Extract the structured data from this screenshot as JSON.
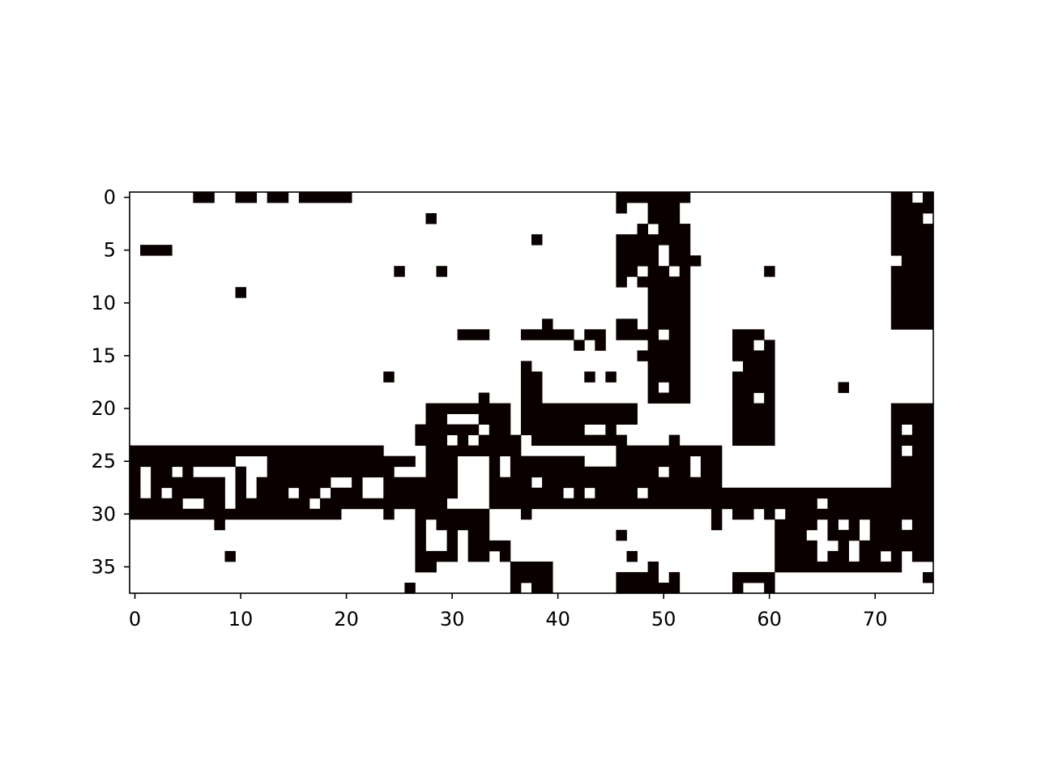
{
  "chart_data": {
    "type": "heatmap",
    "title": "",
    "xlabel": "",
    "ylabel": "",
    "n_cols": 76,
    "n_rows": 38,
    "xlim": [
      -0.5,
      75.5
    ],
    "ylim": [
      37.5,
      -0.5
    ],
    "x_ticks": [
      0,
      10,
      20,
      30,
      40,
      50,
      60,
      70
    ],
    "y_ticks": [
      0,
      5,
      10,
      15,
      20,
      25,
      30,
      35
    ],
    "grid": false,
    "colormap": {
      "0": "#ffffff",
      "1": "#0a0000"
    },
    "row_runs": [
      [
        [
          6,
          7
        ],
        [
          10,
          11
        ],
        [
          13,
          14
        ],
        [
          16,
          20
        ],
        [
          46,
          52
        ],
        [
          72,
          73
        ],
        [
          75,
          75
        ]
      ],
      [
        [
          46,
          46
        ],
        [
          49,
          51
        ],
        [
          72,
          75
        ]
      ],
      [
        [
          28,
          28
        ],
        [
          49,
          51
        ],
        [
          72,
          74
        ]
      ],
      [
        [
          48,
          48
        ],
        [
          50,
          52
        ],
        [
          72,
          75
        ]
      ],
      [
        [
          38,
          38
        ],
        [
          46,
          52
        ],
        [
          72,
          75
        ]
      ],
      [
        [
          1,
          3
        ],
        [
          46,
          49
        ],
        [
          51,
          52
        ],
        [
          72,
          75
        ]
      ],
      [
        [
          46,
          49
        ],
        [
          51,
          53
        ],
        [
          73,
          75
        ]
      ],
      [
        [
          25,
          25
        ],
        [
          29,
          29
        ],
        [
          46,
          47
        ],
        [
          49,
          50
        ],
        [
          52,
          52
        ],
        [
          60,
          60
        ],
        [
          72,
          75
        ]
      ],
      [
        [
          46,
          46
        ],
        [
          48,
          52
        ],
        [
          72,
          75
        ]
      ],
      [
        [
          10,
          10
        ],
        [
          49,
          52
        ],
        [
          72,
          75
        ]
      ],
      [
        [
          49,
          52
        ],
        [
          72,
          75
        ]
      ],
      [
        [
          49,
          52
        ],
        [
          72,
          75
        ]
      ],
      [
        [
          39,
          39
        ],
        [
          46,
          47
        ],
        [
          49,
          52
        ],
        [
          72,
          75
        ]
      ],
      [
        [
          31,
          33
        ],
        [
          37,
          41
        ],
        [
          43,
          44
        ],
        [
          46,
          49
        ],
        [
          51,
          52
        ],
        [
          57,
          59
        ]
      ],
      [
        [
          42,
          42
        ],
        [
          44,
          44
        ],
        [
          49,
          52
        ],
        [
          57,
          58
        ],
        [
          60,
          60
        ]
      ],
      [
        [
          48,
          52
        ],
        [
          57,
          60
        ]
      ],
      [
        [
          37,
          37
        ],
        [
          49,
          52
        ],
        [
          58,
          60
        ]
      ],
      [
        [
          24,
          24
        ],
        [
          37,
          38
        ],
        [
          43,
          43
        ],
        [
          45,
          45
        ],
        [
          49,
          52
        ],
        [
          57,
          60
        ]
      ],
      [
        [
          37,
          38
        ],
        [
          49,
          49
        ],
        [
          51,
          52
        ],
        [
          57,
          60
        ],
        [
          67,
          67
        ]
      ],
      [
        [
          33,
          33
        ],
        [
          37,
          38
        ],
        [
          49,
          52
        ],
        [
          57,
          58
        ],
        [
          60,
          60
        ]
      ],
      [
        [
          28,
          35
        ],
        [
          37,
          47
        ],
        [
          57,
          60
        ],
        [
          72,
          75
        ]
      ],
      [
        [
          28,
          29
        ],
        [
          33,
          35
        ],
        [
          37,
          47
        ],
        [
          57,
          60
        ],
        [
          72,
          75
        ]
      ],
      [
        [
          27,
          32
        ],
        [
          34,
          35
        ],
        [
          37,
          42
        ],
        [
          45,
          45
        ],
        [
          57,
          60
        ],
        [
          72,
          72
        ],
        [
          74,
          75
        ]
      ],
      [
        [
          27,
          29
        ],
        [
          31,
          31
        ],
        [
          33,
          36
        ],
        [
          38,
          46
        ],
        [
          51,
          51
        ],
        [
          57,
          60
        ],
        [
          72,
          75
        ]
      ],
      [
        [
          0,
          23
        ],
        [
          28,
          36
        ],
        [
          46,
          55
        ],
        [
          72,
          72
        ],
        [
          74,
          75
        ]
      ],
      [
        [
          0,
          9
        ],
        [
          13,
          26
        ],
        [
          28,
          30
        ],
        [
          34,
          34
        ],
        [
          36,
          42
        ],
        [
          46,
          52
        ],
        [
          54,
          55
        ],
        [
          72,
          75
        ]
      ],
      [
        [
          0,
          0
        ],
        [
          2,
          3
        ],
        [
          5,
          5
        ],
        [
          10,
          10
        ],
        [
          13,
          24
        ],
        [
          28,
          30
        ],
        [
          34,
          34
        ],
        [
          36,
          49
        ],
        [
          51,
          52
        ],
        [
          54,
          55
        ],
        [
          72,
          75
        ]
      ],
      [
        [
          0,
          0
        ],
        [
          2,
          8
        ],
        [
          10,
          10
        ],
        [
          12,
          18
        ],
        [
          21,
          21
        ],
        [
          24,
          30
        ],
        [
          34,
          37
        ],
        [
          39,
          55
        ],
        [
          72,
          75
        ]
      ],
      [
        [
          0,
          0
        ],
        [
          2,
          2
        ],
        [
          4,
          8
        ],
        [
          10,
          10
        ],
        [
          12,
          14
        ],
        [
          16,
          17
        ],
        [
          19,
          21
        ],
        [
          24,
          30
        ],
        [
          34,
          40
        ],
        [
          42,
          42
        ],
        [
          44,
          47
        ],
        [
          49,
          75
        ]
      ],
      [
        [
          0,
          4
        ],
        [
          7,
          8
        ],
        [
          10,
          16
        ],
        [
          18,
          29
        ],
        [
          34,
          64
        ],
        [
          66,
          75
        ]
      ],
      [
        [
          0,
          19
        ],
        [
          24,
          24
        ],
        [
          27,
          33
        ],
        [
          37,
          37
        ],
        [
          55,
          55
        ],
        [
          57,
          58
        ],
        [
          60,
          60
        ],
        [
          62,
          75
        ]
      ],
      [
        [
          8,
          8
        ],
        [
          27,
          27
        ],
        [
          29,
          33
        ],
        [
          55,
          55
        ],
        [
          61,
          64
        ],
        [
          66,
          66
        ],
        [
          68,
          68
        ],
        [
          70,
          72
        ],
        [
          74,
          75
        ]
      ],
      [
        [
          27,
          27
        ],
        [
          30,
          30
        ],
        [
          32,
          33
        ],
        [
          46,
          46
        ],
        [
          61,
          63
        ],
        [
          66,
          68
        ],
        [
          70,
          75
        ]
      ],
      [
        [
          27,
          27
        ],
        [
          30,
          30
        ],
        [
          32,
          35
        ],
        [
          61,
          64
        ],
        [
          67,
          67
        ],
        [
          69,
          75
        ]
      ],
      [
        [
          9,
          9
        ],
        [
          27,
          30
        ],
        [
          32,
          33
        ],
        [
          35,
          35
        ],
        [
          47,
          47
        ],
        [
          61,
          64
        ],
        [
          66,
          67
        ],
        [
          69,
          70
        ],
        [
          72,
          72
        ],
        [
          74,
          75
        ]
      ],
      [
        [
          27,
          28
        ],
        [
          36,
          39
        ],
        [
          49,
          49
        ],
        [
          61,
          72
        ]
      ],
      [
        [
          36,
          39
        ],
        [
          46,
          49
        ],
        [
          51,
          51
        ],
        [
          57,
          60
        ],
        [
          75,
          75
        ]
      ],
      [
        [
          26,
          26
        ],
        [
          36,
          36
        ],
        [
          38,
          39
        ],
        [
          46,
          51
        ],
        [
          57,
          57
        ],
        [
          60,
          60
        ]
      ]
    ]
  }
}
